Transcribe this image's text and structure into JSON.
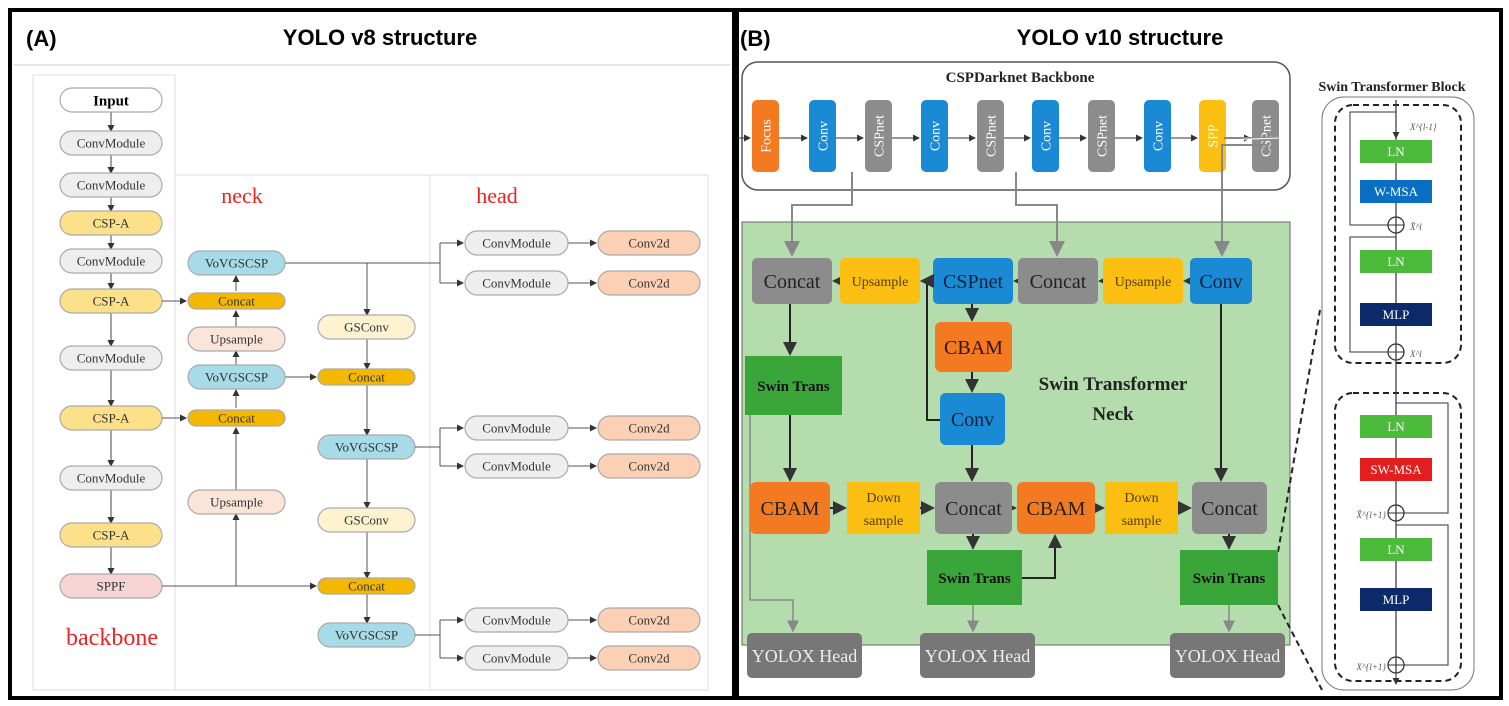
{
  "panel_a": {
    "label": "(A)",
    "title": "YOLO v8 structure",
    "sections": {
      "backbone": "backbone",
      "neck": "neck",
      "head": "head"
    },
    "backbone": [
      "Input",
      "ConvModule",
      "ConvModule",
      "CSP-A",
      "ConvModule",
      "CSP-A",
      "ConvModule",
      "CSP-A",
      "ConvModule",
      "CSP-A",
      "SPPF"
    ],
    "neck_col1": [
      "VoVGSCSP",
      "Concat",
      "Upsample",
      "VoVGSCSP",
      "Concat",
      "Upsample"
    ],
    "neck_col2": [
      "GSConv",
      "Concat",
      "VoVGSCSP",
      "GSConv",
      "Concat",
      "VoVGSCSP"
    ],
    "head": [
      {
        "a": "ConvModule",
        "b": "Conv2d"
      },
      {
        "a": "ConvModule",
        "b": "Conv2d"
      },
      {
        "a": "ConvModule",
        "b": "Conv2d"
      },
      {
        "a": "ConvModule",
        "b": "Conv2d"
      },
      {
        "a": "ConvModule",
        "b": "Conv2d"
      },
      {
        "a": "ConvModule",
        "b": "Conv2d"
      }
    ]
  },
  "panel_b": {
    "label": "(B)",
    "title": "YOLO v10 structure",
    "backbone_title": "CSPDarknet Backbone",
    "backbone": [
      "Focus",
      "Conv",
      "CSPnet",
      "Conv",
      "CSPnet",
      "Conv",
      "CSPnet",
      "Conv",
      "SPP",
      "CSPnet"
    ],
    "neck_title_1": "Swin Transformer",
    "neck_title_2": "Neck",
    "row1": [
      "Concat",
      "Upsample",
      "CSPnet",
      "Concat",
      "Upsample",
      "Conv"
    ],
    "mid": [
      "CBAM",
      "Conv"
    ],
    "swin_left": "Swin Trans",
    "row2": [
      "CBAM",
      "Down",
      "sample",
      "Concat",
      "CBAM",
      "Down",
      "sample",
      "Concat"
    ],
    "swin_mid": "Swin Trans",
    "swin_right": "Swin Trans",
    "heads": [
      "YOLOX Head",
      "YOLOX Head",
      "YOLOX Head"
    ],
    "block_title": "Swin Transformer Block",
    "block": [
      "LN",
      "W-MSA",
      "LN",
      "MLP",
      "LN",
      "SW-MSA",
      "LN",
      "MLP"
    ],
    "symbols": [
      "X^{l-1}",
      "X̂^l",
      "X^l",
      "X̂^{l+1}",
      "X^{l+1}"
    ]
  },
  "colors": {
    "gray_node": "#eeeeee",
    "yellow_node": "#fde08a",
    "orange_node": "#f5b800",
    "peach_node": "#fbe4d8",
    "cyan_node": "#a8dbe8",
    "cream_node": "#fdf3d0",
    "pink_node": "#f6d4d6",
    "salmon_node": "#fbd0b4",
    "focus": "#f47a22",
    "conv": "#1a8ad4",
    "csp": "#8c8c8c",
    "spp": "#fbbf12",
    "green_bg": "#b4dcac",
    "swin": "#3aa63a",
    "ln": "#4cbb3c",
    "wmsa": "#0a6fc2",
    "mlp": "#0c2a6a",
    "swmsa": "#e41e1e",
    "head": "#777777",
    "red_text": "#ee2222"
  }
}
